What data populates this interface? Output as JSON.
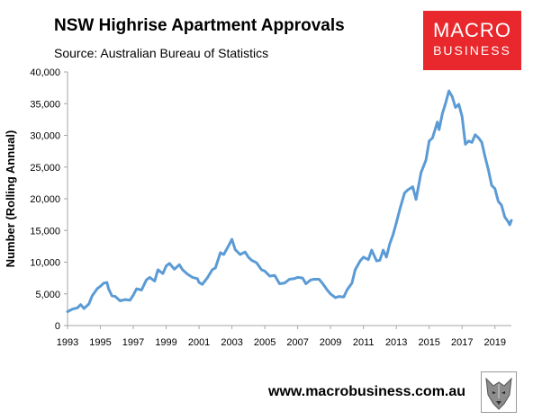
{
  "header": {
    "title": "NSW Highrise Apartment Approvals",
    "source": "Source: Australian Bureau of Statistics"
  },
  "logo": {
    "line1": "MACRO",
    "line2": "BUSINESS"
  },
  "footer": {
    "website": "www.macrobusiness.com.au",
    "mascot_icon": "wolf-head-icon"
  },
  "colors": {
    "line": "#5b9bd5",
    "logo_bg": "#e8282d",
    "axis": "#a6a6a6"
  },
  "chart_data": {
    "type": "line",
    "ylabel": "Number (Rolling Annual)",
    "xlabel": "",
    "ylim": [
      0,
      40000
    ],
    "xlim": [
      1993,
      2020
    ],
    "y_ticks": [
      0,
      5000,
      10000,
      15000,
      20000,
      25000,
      30000,
      35000,
      40000
    ],
    "y_tick_labels": [
      "0",
      "5,000",
      "10,000",
      "15,000",
      "20,000",
      "25,000",
      "30,000",
      "35,000",
      "40,000"
    ],
    "x_ticks": [
      1993,
      1995,
      1997,
      1999,
      2001,
      2003,
      2005,
      2007,
      2009,
      2011,
      2013,
      2015,
      2017,
      2019
    ],
    "x_tick_labels": [
      "1993",
      "1995",
      "1997",
      "1999",
      "2001",
      "2003",
      "2005",
      "2007",
      "2009",
      "2011",
      "2013",
      "2015",
      "2017",
      "2019"
    ],
    "grid": false,
    "legend": "none",
    "series": [
      {
        "x": [
          1993.0,
          1993.3,
          1993.6,
          1993.8,
          1994.0,
          1994.3,
          1994.5,
          1994.8,
          1995.0,
          1995.2,
          1995.4,
          1995.5,
          1995.7,
          1995.9,
          1996.2,
          1996.5,
          1996.8,
          1997.0,
          1997.2,
          1997.5,
          1997.8,
          1998.0,
          1998.3,
          1998.5,
          1998.8,
          1999.0,
          1999.2,
          1999.5,
          1999.8,
          2000.0,
          2000.3,
          2000.6,
          2000.9,
          2001.0,
          2001.2,
          2001.5,
          2001.8,
          2002.0,
          2002.3,
          2002.5,
          2002.8,
          2003.0,
          2003.2,
          2003.5,
          2003.8,
          2004.0,
          2004.2,
          2004.5,
          2004.8,
          2005.0,
          2005.3,
          2005.6,
          2005.9,
          2006.2,
          2006.5,
          2006.8,
          2007.0,
          2007.3,
          2007.5,
          2007.8,
          2008.0,
          2008.3,
          2008.5,
          2008.8,
          2009.0,
          2009.3,
          2009.5,
          2009.8,
          2010.0,
          2010.3,
          2010.5,
          2010.8,
          2011.0,
          2011.3,
          2011.5,
          2011.8,
          2012.0,
          2012.2,
          2012.4,
          2012.6,
          2012.8,
          2013.0,
          2013.2,
          2013.5,
          2013.7,
          2014.0,
          2014.2,
          2014.5,
          2014.8,
          2015.0,
          2015.2,
          2015.5,
          2015.6,
          2015.8,
          2016.0,
          2016.2,
          2016.4,
          2016.6,
          2016.8,
          2017.0,
          2017.2,
          2017.4,
          2017.6,
          2017.8,
          2018.0,
          2018.2,
          2018.4,
          2018.6,
          2018.8,
          2019.0,
          2019.2,
          2019.4,
          2019.6,
          2019.8,
          2019.9,
          2020.0
        ],
        "values": [
          2200,
          2600,
          2800,
          3300,
          2700,
          3400,
          4700,
          5800,
          6200,
          6700,
          6800,
          5800,
          4700,
          4600,
          3900,
          4100,
          4000,
          4800,
          5800,
          5600,
          7200,
          7600,
          7000,
          8800,
          8200,
          9400,
          9800,
          8900,
          9600,
          8800,
          8100,
          7600,
          7400,
          6800,
          6500,
          7500,
          8800,
          9100,
          11500,
          11200,
          12600,
          13600,
          12000,
          11200,
          11600,
          10800,
          10300,
          9900,
          8800,
          8600,
          7800,
          7900,
          6600,
          6700,
          7300,
          7400,
          7600,
          7500,
          6600,
          7200,
          7300,
          7300,
          6700,
          5600,
          5000,
          4400,
          4600,
          4500,
          5600,
          6700,
          8800,
          10200,
          10800,
          10400,
          11900,
          10200,
          10300,
          11900,
          10800,
          12900,
          14300,
          16200,
          18200,
          20900,
          21400,
          21900,
          19900,
          24100,
          26100,
          29100,
          29600,
          32100,
          30900,
          33400,
          35100,
          37000,
          36100,
          34400,
          34900,
          33000,
          28600,
          29100,
          28900,
          30100,
          29600,
          28900,
          26600,
          24600,
          22100,
          21600,
          19600,
          19000,
          17100,
          16400,
          15900,
          16600
        ]
      }
    ]
  }
}
